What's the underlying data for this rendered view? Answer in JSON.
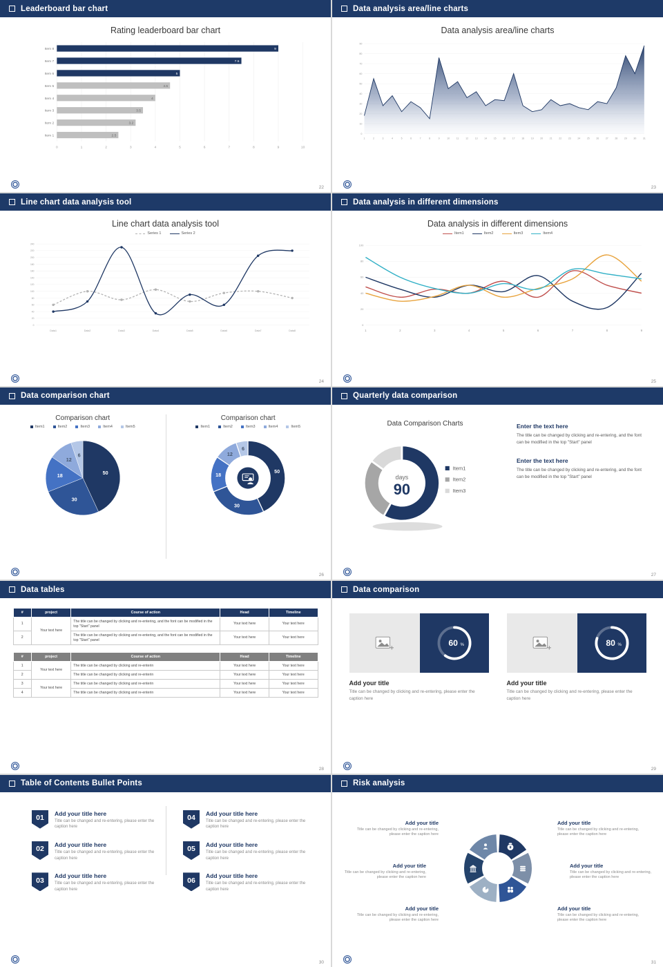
{
  "icons": {
    "header_bullet": "square-outline",
    "image_placeholder": "picture-frame-with-plus",
    "donut_center": "presenter-at-board"
  },
  "slides": [
    {
      "header": "Leaderboard bar chart",
      "page": "22",
      "title": "Rating leaderboard bar chart",
      "chart_data": {
        "type": "bar",
        "orientation": "horizontal",
        "title": "Rating leaderboard bar chart",
        "categories": [
          "Item 1",
          "Item 2",
          "Item 3",
          "Item 4",
          "Item 5",
          "Item 6",
          "Item 7",
          "Item 8"
        ],
        "values": [
          2.5,
          3.2,
          3.5,
          4,
          4.6,
          5,
          7.5,
          9
        ],
        "value_labels": [
          "2.5",
          "3.2",
          "3.5",
          "4",
          "4.6",
          "5",
          "7.5",
          "9"
        ],
        "bar_colors": [
          "#BFBFBF",
          "#BFBFBF",
          "#BFBFBF",
          "#BFBFBF",
          "#BFBFBF",
          "#1F3864",
          "#1F3864",
          "#1F3864"
        ],
        "xlim": [
          0,
          10
        ],
        "xticks": [
          0,
          1,
          2,
          3,
          4,
          5,
          6,
          7,
          8,
          9,
          10
        ]
      }
    },
    {
      "header": "Data analysis area/line charts",
      "page": "23",
      "title": "Data analysis area/line charts",
      "chart_data": {
        "type": "area",
        "title": "Data analysis area/line charts",
        "x": [
          1,
          2,
          3,
          4,
          5,
          6,
          7,
          8,
          9,
          10,
          11,
          12,
          13,
          14,
          15,
          16,
          17,
          18,
          19,
          20,
          21,
          22,
          23,
          24,
          25,
          26,
          27,
          28,
          29,
          30,
          31
        ],
        "values": [
          18,
          55,
          28,
          38,
          22,
          32,
          26,
          15,
          76,
          45,
          52,
          36,
          42,
          28,
          34,
          33,
          60,
          28,
          22,
          24,
          34,
          28,
          30,
          26,
          24,
          32,
          30,
          46,
          78,
          60,
          88
        ],
        "ylim": [
          0,
          90
        ],
        "yticks": [
          0,
          10,
          20,
          30,
          40,
          50,
          60,
          70,
          80,
          90
        ],
        "line_color": "#1F3864"
      }
    },
    {
      "header": "Line chart data analysis tool",
      "page": "24",
      "title": "Line chart data analysis tool",
      "chart_data": {
        "type": "line",
        "title": "Line chart data analysis tool",
        "categories": [
          "Data1",
          "Data2",
          "Data3",
          "Data4",
          "Data5",
          "Data6",
          "Data7",
          "Data8"
        ],
        "series": [
          {
            "name": "Series 1",
            "color": "#B3B3B3",
            "dashed": true,
            "values": [
              60,
              100,
              75,
              105,
              70,
              95,
              100,
              80
            ]
          },
          {
            "name": "Series 2",
            "color": "#1F3864",
            "dashed": false,
            "values": [
              40,
              70,
              230,
              35,
              90,
              60,
              205,
              220
            ]
          }
        ],
        "ylim": [
          0,
          240
        ],
        "yticks": [
          0,
          20,
          40,
          60,
          80,
          100,
          120,
          140,
          160,
          180,
          200,
          220,
          240
        ]
      }
    },
    {
      "header": "Data analysis in different dimensions",
      "page": "25",
      "title": "Data analysis in different dimensions",
      "chart_data": {
        "type": "line",
        "title": "Data analysis in different dimensions",
        "x": [
          1,
          2,
          3,
          4,
          5,
          6,
          7,
          8,
          9
        ],
        "series": [
          {
            "name": "Item1",
            "color": "#C0504D",
            "values": [
              48,
              35,
              45,
              40,
              55,
              35,
              68,
              50,
              40
            ]
          },
          {
            "name": "Item2",
            "color": "#1F3864",
            "values": [
              60,
              45,
              35,
              50,
              42,
              62,
              30,
              22,
              65
            ]
          },
          {
            "name": "Item3",
            "color": "#E8A33D",
            "values": [
              40,
              30,
              36,
              50,
              35,
              46,
              58,
              88,
              55
            ]
          },
          {
            "name": "Item4",
            "color": "#31B0C6",
            "values": [
              85,
              60,
              46,
              40,
              52,
              45,
              70,
              64,
              58
            ]
          }
        ],
        "ylim": [
          0,
          100
        ],
        "yticks": [
          0,
          20,
          40,
          60,
          80,
          100
        ]
      }
    },
    {
      "header": "Data comparison chart",
      "page": "26",
      "left_title": "Comparison chart",
      "right_title": "Comparison chart",
      "chart_data": {
        "type": "pie",
        "labels": [
          "Item1",
          "Item2",
          "Item3",
          "Item4",
          "Item5"
        ],
        "values": [
          50,
          30,
          18,
          12,
          6
        ],
        "colors": [
          "#1F3864",
          "#2F5597",
          "#4472C4",
          "#8FAADC",
          "#B4C7E7"
        ],
        "variants": [
          "pie",
          "donut"
        ]
      }
    },
    {
      "header": "Quarterly data comparison",
      "page": "27",
      "chart_title": "Data Comparison Charts",
      "chart_data": {
        "type": "donut",
        "title": "Data Comparison Charts",
        "labels": [
          "Item1",
          "Item2",
          "Item3"
        ],
        "values": [
          58,
          27,
          15
        ],
        "colors": [
          "#1F3864",
          "#A6A6A6",
          "#D9D9D9"
        ],
        "center_label": "days",
        "center_value": "90"
      },
      "blocks": [
        {
          "heading": "Enter the text here",
          "body": "The title can be changed by clicking and re-entering, and the font can be modified in the top \"Start\" panel"
        },
        {
          "heading": "Enter the text here",
          "body": "The title can be changed by clicking and re-entering, and the font can be modified in the top \"Start\" panel"
        }
      ]
    },
    {
      "header": "Data tables",
      "page": "28",
      "table1": {
        "headers": [
          "#",
          "project",
          "Course of action",
          "Head",
          "Timeline"
        ],
        "row_nums": [
          "1",
          "2"
        ],
        "project": "Your text here",
        "course": "The title can be changed by clicking and re-entering, and the font can be modified in the top \"Start\" panel",
        "cell": "Your text here"
      },
      "table2": {
        "headers": [
          "#",
          "project",
          "Course of action",
          "Head",
          "Timeline"
        ],
        "row_nums": [
          "1",
          "2",
          "3",
          "4"
        ],
        "project": "Your text here",
        "course": "The title can be changed by clicking and re-enterin",
        "cell": "Your text here"
      }
    },
    {
      "header": "Data comparison",
      "page": "29",
      "cards": [
        {
          "percent": 60,
          "title": "Add your title",
          "caption": "Title can be changed by clicking and re-entering, please enter the caption here"
        },
        {
          "percent": 80,
          "title": "Add your title",
          "caption": "Title can be changed by clicking and re-entering, please enter the caption here"
        }
      ]
    },
    {
      "header": "Table of Contents Bullet Points",
      "page": "30",
      "items": [
        {
          "num": "01",
          "title": "Add your title here",
          "caption": "Title can be changed and re-entering, please enter the caption here"
        },
        {
          "num": "02",
          "title": "Add your title here",
          "caption": "Title can be changed and re-entering, please enter the caption here"
        },
        {
          "num": "03",
          "title": "Add your title here",
          "caption": "Title can be changed and re-entering, please enter the caption here"
        },
        {
          "num": "04",
          "title": "Add your title here",
          "caption": "Title can be changed and re-entering, please enter the caption here"
        },
        {
          "num": "05",
          "title": "Add your title here",
          "caption": "Title can be changed and re-entering, please enter the caption here"
        },
        {
          "num": "06",
          "title": "Add your title here",
          "caption": "Title can be changed and re-entering, please enter the caption here"
        }
      ]
    },
    {
      "header": "Risk analysis",
      "page": "31",
      "blocks": [
        {
          "title": "Add your title",
          "caption": "Title can be changed by clicking and re-entering, please enter the caption here"
        },
        {
          "title": "Add your title",
          "caption": "Title can be changed by clicking and re-entering, please enter the caption here"
        },
        {
          "title": "Add your title",
          "caption": "Title can be changed by clicking and re-entering, please enter the caption here"
        },
        {
          "title": "Add your title",
          "caption": "Title can be changed by clicking and re-entering, please enter the caption here"
        },
        {
          "title": "Add your title",
          "caption": "Title can be changed by clicking and re-entering, please enter the caption here"
        },
        {
          "title": "Add your title",
          "caption": "Title can be changed by clicking and re-entering, please enter the caption here"
        }
      ],
      "diagram": {
        "segments": [
          {
            "color": "#1F3864",
            "icon": "money-bag-icon"
          },
          {
            "color": "#7D8FA8",
            "icon": "coins-icon"
          },
          {
            "color": "#2F5597",
            "icon": "people-icon"
          },
          {
            "color": "#9DB0C4",
            "icon": "pie-chart-icon"
          },
          {
            "color": "#24436B",
            "icon": "bank-icon"
          },
          {
            "color": "#6E87A8",
            "icon": "person-icon"
          }
        ]
      }
    }
  ]
}
